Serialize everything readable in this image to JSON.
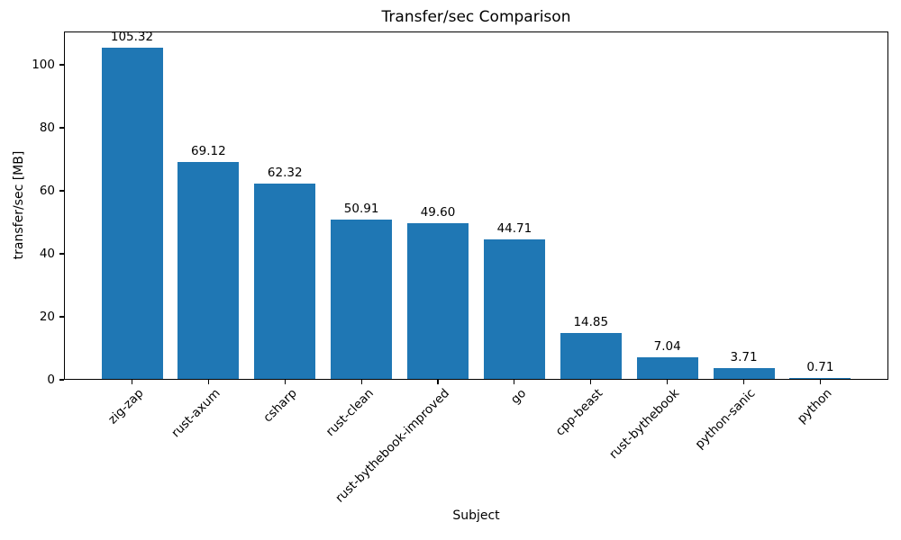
{
  "chart_data": {
    "type": "bar",
    "title": "Transfer/sec Comparison",
    "xlabel": "Subject",
    "ylabel": "transfer/sec [MB]",
    "categories": [
      "zig-zap",
      "rust-axum",
      "csharp",
      "rust-clean",
      "rust-bythebook-improved",
      "go",
      "cpp-beast",
      "rust-bythebook",
      "python-sanic",
      "python"
    ],
    "values": [
      105.32,
      69.12,
      62.32,
      50.91,
      49.6,
      44.71,
      14.85,
      7.04,
      3.71,
      0.71
    ],
    "value_labels": [
      "105.32",
      "69.12",
      "62.32",
      "50.91",
      "49.60",
      "44.71",
      "14.85",
      "7.04",
      "3.71",
      "0.71"
    ],
    "ylim": [
      0,
      110.6
    ],
    "yticks": [
      0,
      20,
      40,
      60,
      80,
      100
    ],
    "bar_color": "#1f77b4",
    "axis_color": "#000000",
    "text_color": "#000000",
    "grid": false,
    "legend": null,
    "x_tick_rotation_deg": 45
  }
}
